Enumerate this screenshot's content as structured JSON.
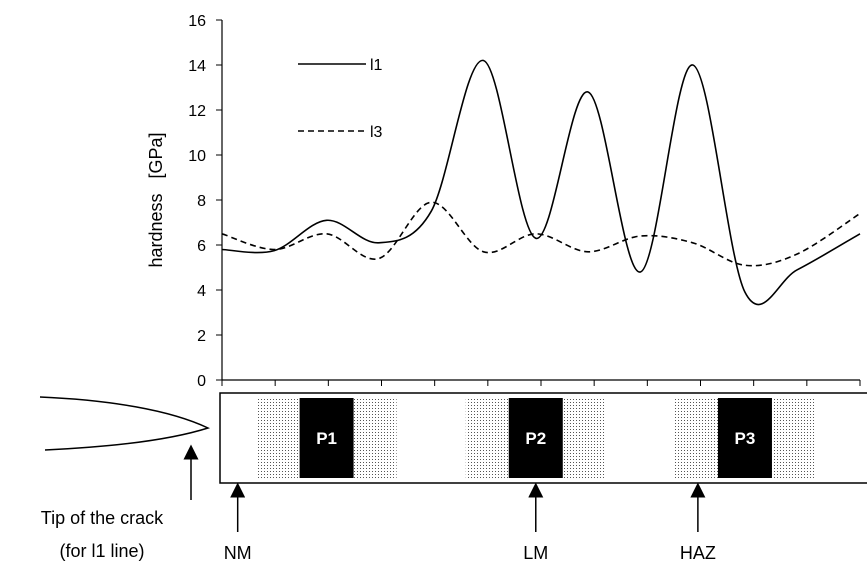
{
  "chart_data": {
    "type": "line",
    "ylabel": "hardness   [GPa]",
    "xlabel": "",
    "ylim": [
      0,
      16
    ],
    "yticks": [
      0,
      2,
      4,
      6,
      8,
      10,
      12,
      14,
      16
    ],
    "xlim": [
      0,
      12.2
    ],
    "x_tick_count": 13,
    "grid": false,
    "legend_position": "top-left",
    "series": [
      {
        "name": "l1",
        "style": "solid",
        "color": "#000000",
        "points": [
          [
            0,
            5.8
          ],
          [
            1.0,
            5.75
          ],
          [
            2.0,
            7.1
          ],
          [
            3.0,
            6.1
          ],
          [
            4.0,
            7.5
          ],
          [
            5.0,
            14.2
          ],
          [
            6.0,
            6.3
          ],
          [
            7.0,
            12.8
          ],
          [
            8.0,
            4.8
          ],
          [
            9.0,
            14.0
          ],
          [
            10.0,
            3.9
          ],
          [
            11.0,
            4.9
          ],
          [
            12.2,
            6.5
          ]
        ]
      },
      {
        "name": "l3",
        "style": "dashed",
        "color": "#000000",
        "points": [
          [
            0,
            6.5
          ],
          [
            1.0,
            5.8
          ],
          [
            2.0,
            6.5
          ],
          [
            3.0,
            5.4
          ],
          [
            4.0,
            7.9
          ],
          [
            5.0,
            5.7
          ],
          [
            6.0,
            6.5
          ],
          [
            7.0,
            5.7
          ],
          [
            8.0,
            6.4
          ],
          [
            9.0,
            6.1
          ],
          [
            10.0,
            5.1
          ],
          [
            11.0,
            5.6
          ],
          [
            12.2,
            7.4
          ]
        ]
      }
    ]
  },
  "specimen": {
    "phases": [
      {
        "label": "P1",
        "center": 2.0
      },
      {
        "label": "P2",
        "center": 6.0
      },
      {
        "label": "P3",
        "center": 10.0
      }
    ],
    "zones": [
      {
        "label": "NM",
        "x": 0.3
      },
      {
        "label": "LM",
        "x": 6.0
      },
      {
        "label": "HAZ",
        "x": 9.1
      }
    ],
    "crack_label_line1": "Tip of the crack",
    "crack_label_line2": "(for l1 line)"
  },
  "colors": {
    "ink": "#000000",
    "phase_fill": "#000000",
    "stipple": "#555555",
    "background": "#ffffff"
  }
}
